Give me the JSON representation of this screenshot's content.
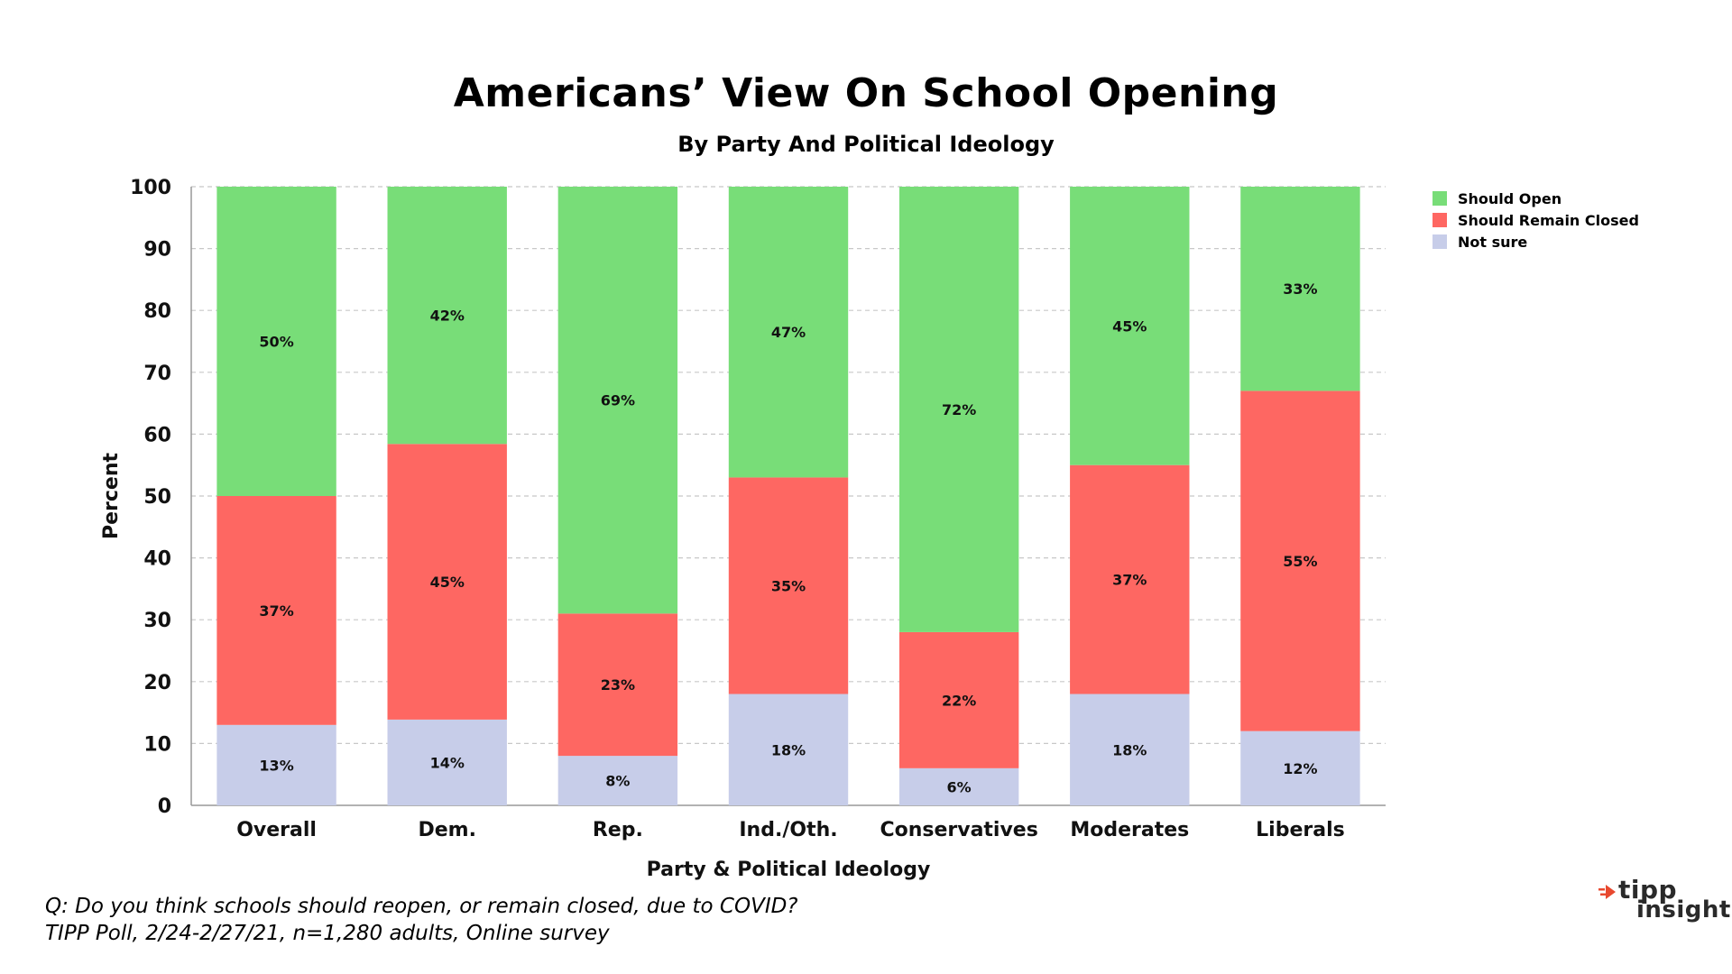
{
  "chart_data": {
    "type": "bar",
    "stacked": true,
    "title": "Americans’ View On School Opening",
    "subtitle": "By Party And Political Ideology",
    "xlabel": "Party & Political Ideology",
    "ylabel": "Percent",
    "ylim": [
      0,
      100
    ],
    "yticks": [
      0,
      10,
      20,
      30,
      40,
      50,
      60,
      70,
      80,
      90,
      100
    ],
    "grid": true,
    "legend_position": "top-right",
    "categories": [
      "Overall",
      "Dem.",
      "Rep.",
      "Ind./Oth.",
      "Conservatives",
      "Moderates",
      "Liberals"
    ],
    "series": [
      {
        "name": "Not sure",
        "color": "#c7cde9",
        "values": [
          13,
          14,
          8,
          18,
          6,
          18,
          12
        ],
        "labels": [
          "13%",
          "14%",
          "8%",
          "18%",
          "6%",
          "18%",
          "12%"
        ]
      },
      {
        "name": "Should Remain Closed",
        "color": "#fe6762",
        "values": [
          37,
          45,
          23,
          35,
          22,
          37,
          55
        ],
        "labels": [
          "37%",
          "45%",
          "23%",
          "35%",
          "22%",
          "37%",
          "55%"
        ]
      },
      {
        "name": "Should Open",
        "color": "#78dd78",
        "values": [
          50,
          42,
          69,
          47,
          72,
          45,
          33
        ],
        "labels": [
          "50%",
          "42%",
          "69%",
          "47%",
          "72%",
          "45%",
          "33%"
        ]
      }
    ],
    "legend_order": [
      "Should Open",
      "Should Remain Closed",
      "Not sure"
    ]
  },
  "footnote": {
    "line1": "Q:  Do you think schools should reopen, or remain closed, due to COVID?",
    "line2": "TIPP Poll, 2/24-2/27/21, n=1,280 adults, Online survey"
  },
  "logo": {
    "line1": "tipp",
    "line2": "insights",
    "accent_color": "#e8492f"
  }
}
